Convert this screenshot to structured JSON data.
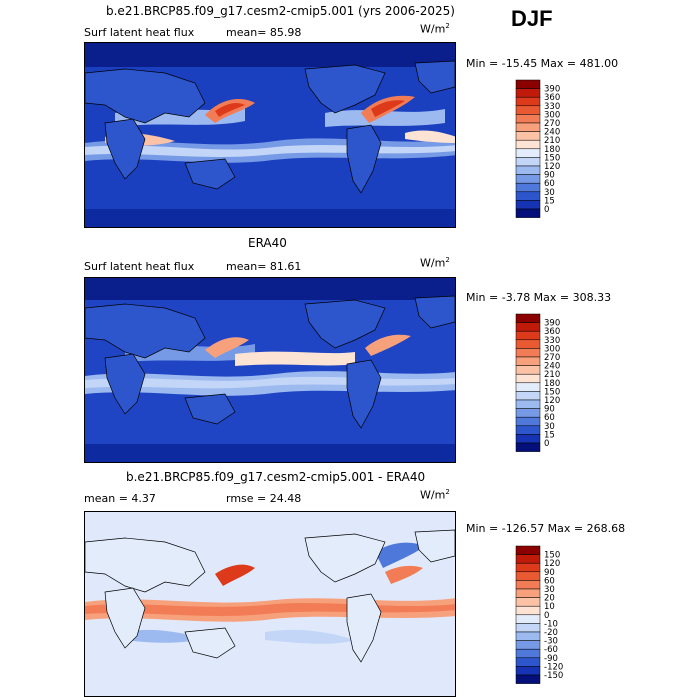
{
  "season": "DJF",
  "panels": [
    {
      "title": "b.e21.BRCP85.f09_g17.cesm2-cmip5.001 (yrs 2006-2025)",
      "left_label": "Surf latent heat flux",
      "mid_label": "mean=  85.98",
      "units": "W/m",
      "units_exp": "2",
      "minmax": "Min = -15.45  Max = 481.00",
      "colorbar": {
        "labels": [
          "390",
          "360",
          "330",
          "300",
          "270",
          "240",
          "210",
          "180",
          "150",
          "120",
          "90",
          "60",
          "30",
          "15",
          "0"
        ],
        "colors": [
          "#8b0000",
          "#bf1a0a",
          "#dd3a1c",
          "#e95a33",
          "#f27c55",
          "#f7a07c",
          "#fbc2a6",
          "#fde3d4",
          "#e2ecfb",
          "#c3d6f7",
          "#9cbaf0",
          "#769ae6",
          "#4f78db",
          "#2d55cc",
          "#1533b3",
          "#050f7a"
        ]
      }
    },
    {
      "title": "ERA40",
      "left_label": "Surf latent heat flux",
      "mid_label": "mean=  81.61",
      "units": "W/m",
      "units_exp": "2",
      "minmax": "Min =  -3.78  Max = 308.33",
      "colorbar": {
        "labels": [
          "390",
          "360",
          "330",
          "300",
          "270",
          "240",
          "210",
          "180",
          "150",
          "120",
          "90",
          "60",
          "30",
          "15",
          "0"
        ],
        "colors": [
          "#8b0000",
          "#bf1a0a",
          "#dd3a1c",
          "#e95a33",
          "#f27c55",
          "#f7a07c",
          "#fbc2a6",
          "#fde3d4",
          "#e2ecfb",
          "#c3d6f7",
          "#9cbaf0",
          "#769ae6",
          "#4f78db",
          "#2d55cc",
          "#1533b3",
          "#050f7a"
        ]
      }
    },
    {
      "title": "b.e21.BRCP85.f09_g17.cesm2-cmip5.001 - ERA40",
      "left_label": "mean =   4.37",
      "mid_label": "rmse =  24.48",
      "units": "W/m",
      "units_exp": "2",
      "minmax": "Min = -126.57  Max = 268.68",
      "colorbar": {
        "labels": [
          "150",
          "120",
          "90",
          "60",
          "30",
          "20",
          "10",
          "0",
          "-10",
          "-20",
          "-30",
          "-60",
          "-90",
          "-120",
          "-150"
        ],
        "colors": [
          "#8b0000",
          "#bf1a0a",
          "#dd3a1c",
          "#e95a33",
          "#f27c55",
          "#f7a07c",
          "#fbc2a6",
          "#fde3d4",
          "#e2ecfb",
          "#c3d6f7",
          "#9cbaf0",
          "#769ae6",
          "#4f78db",
          "#2d55cc",
          "#1533b3",
          "#050f7a"
        ]
      }
    }
  ]
}
